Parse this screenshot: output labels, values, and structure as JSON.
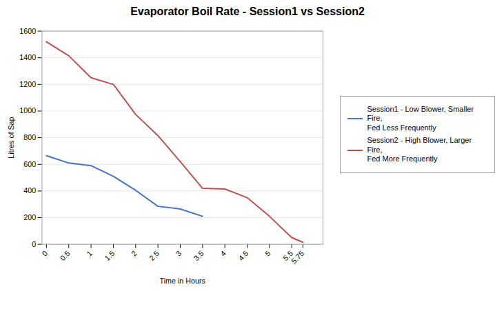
{
  "chart_data": {
    "type": "line",
    "title": "Evaporator Boil Rate - Session1 vs Session2",
    "xlabel": "Time in Hours",
    "ylabel": "Litres of Sap",
    "series": [
      {
        "name": "Session1 - Low Blower, Smaller Fire,\nFed Less Frequently",
        "color": "#4472C4",
        "x": [
          0,
          0.5,
          1,
          1.5,
          2,
          2.5,
          3,
          3.5
        ],
        "values": [
          665,
          610,
          590,
          510,
          405,
          285,
          265,
          210
        ]
      },
      {
        "name": "Session2 - High Blower, Larger Fire,\nFed More Frequently",
        "color": "#C0504D",
        "x": [
          0,
          0.5,
          1,
          1.5,
          2,
          2.5,
          3,
          3.5,
          4,
          4.5,
          5,
          5.5,
          5.75
        ],
        "values": [
          1520,
          1415,
          1250,
          1200,
          975,
          815,
          620,
          420,
          415,
          350,
          210,
          50,
          15
        ]
      }
    ],
    "xlim": [
      -0.1,
      6.2
    ],
    "ylim": [
      0,
      1600
    ],
    "xticks": [
      0,
      0.5,
      1,
      1.5,
      2,
      2.5,
      3,
      3.5,
      4,
      4.5,
      5,
      5.5,
      5.75
    ],
    "yticks": [
      0,
      200,
      400,
      600,
      800,
      1000,
      1200,
      1400,
      1600
    ],
    "grid": true,
    "legend": "right"
  }
}
